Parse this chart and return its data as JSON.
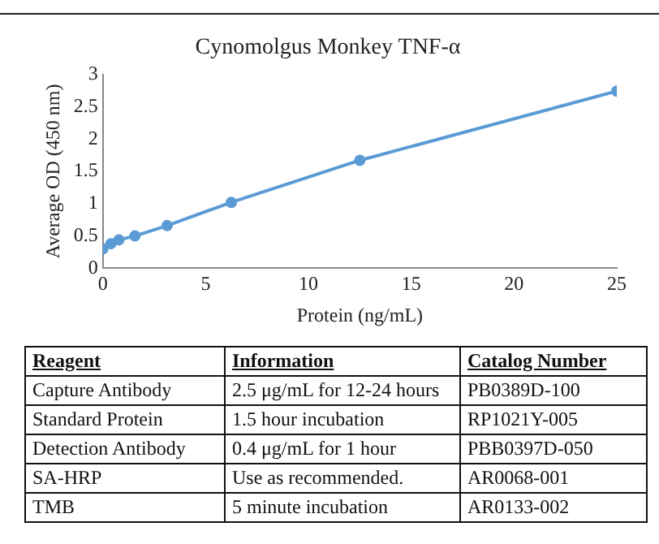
{
  "chart_data": [
    {
      "type": "line",
      "title": "Cynomolgus Monkey TNF-α",
      "xlabel": "Protein (ng/mL)",
      "ylabel": "Average OD (450 nm)",
      "x": [
        0,
        0.39,
        0.78,
        1.56,
        3.125,
        6.25,
        12.5,
        25
      ],
      "series": [
        {
          "color": "#5b9bd5",
          "values": [
            0.3,
            0.38,
            0.44,
            0.5,
            0.66,
            1.02,
            1.67,
            2.74
          ]
        }
      ],
      "xlim": [
        0,
        25
      ],
      "xticks": [
        0,
        5,
        10,
        15,
        20,
        25
      ],
      "ylim": [
        0,
        3
      ],
      "yticks": [
        0,
        0.5,
        1,
        1.5,
        2,
        2.5,
        3
      ],
      "grid": false,
      "legend": false,
      "marker": "circle",
      "line_style": "solid"
    },
    {
      "type": "other",
      "annotations": [
        "Reagent",
        "Information",
        "Catalog Number",
        "Capture Antibody",
        "2.5 μg/mL for 12-24 hours",
        "PB0389D-100",
        "Standard Protein",
        "1.5 hour incubation",
        "RP1021Y-005",
        "Detection Antibody",
        "0.4 μg/mL for 1 hour",
        "PBB0397D-050",
        "SA-HRP",
        "Use as recommended.",
        "AR0068-001",
        "TMB",
        "5 minute incubation",
        "AR0133-002"
      ]
    }
  ]
}
